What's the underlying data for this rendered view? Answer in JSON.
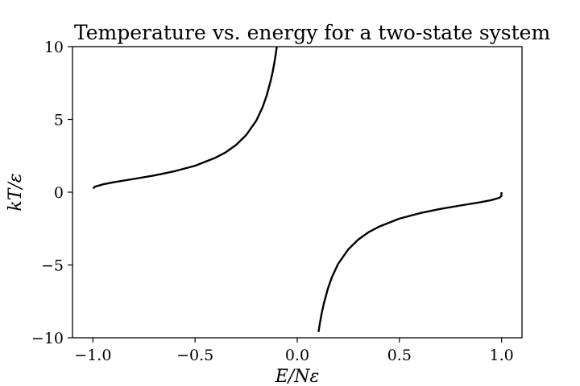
{
  "chart_data": {
    "type": "line",
    "title": "Temperature vs. energy for a two-state system",
    "xlabel": "E/Nε",
    "ylabel": "kT/ε",
    "xlim": [
      -1.1,
      1.1
    ],
    "ylim": [
      -10,
      10
    ],
    "xticks": [
      -1.0,
      -0.5,
      0.0,
      0.5,
      1.0
    ],
    "xtick_labels": [
      "−1.0",
      "−0.5",
      "0.0",
      "0.5",
      "1.0"
    ],
    "yticks": [
      10,
      5,
      0,
      -5,
      -10
    ],
    "ytick_labels": [
      "10",
      "5",
      "0",
      "−5",
      "−10"
    ],
    "grid": false,
    "line_color": "#000000",
    "series": [
      {
        "x": [
          -0.999,
          -0.99,
          -0.95,
          -0.9,
          -0.8,
          -0.7,
          -0.6,
          -0.5,
          -0.4,
          -0.35,
          -0.3,
          -0.25,
          -0.2,
          -0.17,
          -0.15,
          -0.13,
          -0.12,
          -0.11,
          -0.1
        ],
        "y": [
          0.26,
          0.38,
          0.54,
          0.68,
          0.91,
          1.15,
          1.44,
          1.82,
          2.37,
          2.74,
          3.24,
          3.92,
          4.93,
          5.83,
          6.63,
          7.65,
          8.3,
          9.06,
          9.97
        ]
      },
      {
        "x": [
          0.104,
          0.11,
          0.12,
          0.13,
          0.15,
          0.17,
          0.2,
          0.25,
          0.3,
          0.35,
          0.4,
          0.5,
          0.6,
          0.7,
          0.8,
          0.9,
          0.95,
          0.99,
          0.999,
          1.0
        ],
        "y": [
          -9.6,
          -9.06,
          -8.3,
          -7.65,
          -6.63,
          -5.83,
          -4.93,
          -3.92,
          -3.24,
          -2.74,
          -2.37,
          -1.82,
          -1.44,
          -1.15,
          -0.91,
          -0.68,
          -0.54,
          -0.38,
          -0.26,
          0.0
        ]
      }
    ]
  }
}
